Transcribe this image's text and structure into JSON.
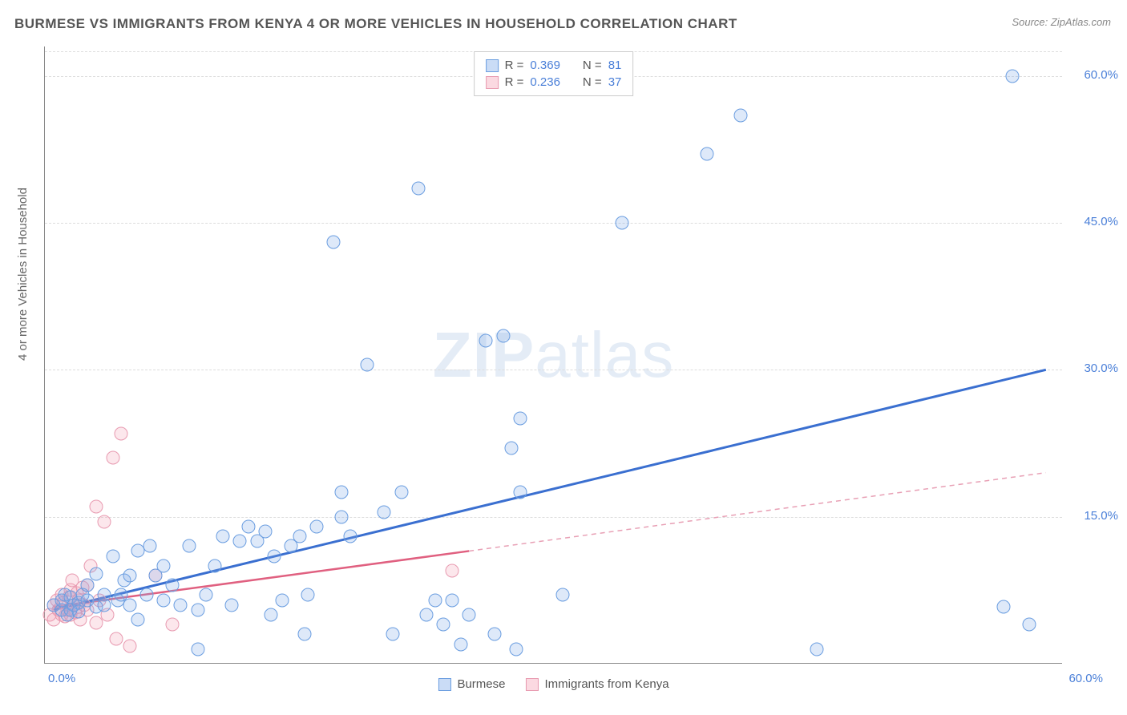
{
  "title": "BURMESE VS IMMIGRANTS FROM KENYA 4 OR MORE VEHICLES IN HOUSEHOLD CORRELATION CHART",
  "source": "Source: ZipAtlas.com",
  "ylabel": "4 or more Vehicles in Household",
  "watermark_bold": "ZIP",
  "watermark_light": "atlas",
  "xlim": [
    0,
    60
  ],
  "ylim": [
    0,
    63
  ],
  "xtick_labels": [
    "0.0%",
    "60.0%"
  ],
  "ytick_positions": [
    15,
    30,
    45,
    60
  ],
  "ytick_labels": [
    "15.0%",
    "30.0%",
    "45.0%",
    "60.0%"
  ],
  "series": {
    "blue": {
      "name": "Burmese",
      "color_fill": "rgba(122,168,232,0.25)",
      "color_stroke": "#6a9de0",
      "marker_size": 17,
      "R": "0.369",
      "N": "81",
      "trend": {
        "from_pct": [
          0.5,
          5.5
        ],
        "to_pct": [
          59,
          30
        ],
        "color": "#3a6fd0",
        "width": 3,
        "dash": "none"
      },
      "points_pct": [
        [
          0.5,
          6
        ],
        [
          1,
          5.5
        ],
        [
          1,
          6.5
        ],
        [
          1.2,
          7
        ],
        [
          1.3,
          5
        ],
        [
          1.5,
          5.5
        ],
        [
          1.5,
          6.8
        ],
        [
          1.7,
          6
        ],
        [
          2,
          6.2
        ],
        [
          2,
          5.3
        ],
        [
          2.2,
          7
        ],
        [
          2.5,
          6.5
        ],
        [
          2.5,
          8
        ],
        [
          3,
          5.8
        ],
        [
          3,
          9.2
        ],
        [
          3.5,
          7
        ],
        [
          3.5,
          6
        ],
        [
          4,
          11
        ],
        [
          4.3,
          6.5
        ],
        [
          4.5,
          7
        ],
        [
          4.7,
          8.5
        ],
        [
          5,
          6
        ],
        [
          5,
          9
        ],
        [
          5.5,
          4.5
        ],
        [
          5.5,
          11.5
        ],
        [
          6,
          7
        ],
        [
          6.2,
          12
        ],
        [
          6.5,
          9
        ],
        [
          7,
          6.5
        ],
        [
          7,
          10
        ],
        [
          7.5,
          8
        ],
        [
          8,
          6
        ],
        [
          8.5,
          12
        ],
        [
          9,
          1.5
        ],
        [
          9,
          5.5
        ],
        [
          9.5,
          7
        ],
        [
          10,
          10
        ],
        [
          10.5,
          13
        ],
        [
          11,
          6
        ],
        [
          11.5,
          12.5
        ],
        [
          12,
          14
        ],
        [
          12.5,
          12.5
        ],
        [
          13,
          13.5
        ],
        [
          13.3,
          5
        ],
        [
          13.5,
          11
        ],
        [
          14,
          6.5
        ],
        [
          14.5,
          12
        ],
        [
          15,
          13
        ],
        [
          15.3,
          3
        ],
        [
          15.5,
          7
        ],
        [
          16,
          14
        ],
        [
          17,
          43
        ],
        [
          17.5,
          15
        ],
        [
          17.5,
          17.5
        ],
        [
          18,
          13
        ],
        [
          19,
          30.5
        ],
        [
          20,
          15.5
        ],
        [
          20.5,
          3
        ],
        [
          21,
          17.5
        ],
        [
          22,
          48.5
        ],
        [
          22.5,
          5
        ],
        [
          23,
          6.5
        ],
        [
          23.5,
          4
        ],
        [
          24,
          6.5
        ],
        [
          24.5,
          2
        ],
        [
          25,
          5
        ],
        [
          26,
          33
        ],
        [
          26.5,
          3
        ],
        [
          27,
          33.5
        ],
        [
          27.5,
          22
        ],
        [
          27.8,
          1.5
        ],
        [
          28,
          17.5
        ],
        [
          28,
          25
        ],
        [
          30.5,
          7
        ],
        [
          34,
          45
        ],
        [
          39,
          52
        ],
        [
          41,
          56
        ],
        [
          45.5,
          1.5
        ],
        [
          56.5,
          5.8
        ],
        [
          57,
          60
        ],
        [
          58,
          4
        ]
      ]
    },
    "pink": {
      "name": "Immigrants from Kenya",
      "color_fill": "rgba(245,160,180,0.25)",
      "color_stroke": "#e89ab0",
      "marker_size": 17,
      "R": "0.236",
      "N": "37",
      "trend": {
        "from_pct": [
          0.5,
          5.8
        ],
        "to_pct": [
          25,
          11.5
        ],
        "color": "#e06080",
        "width": 2.5,
        "dash": "none"
      },
      "trend_ext": {
        "from_pct": [
          25,
          11.5
        ],
        "to_pct": [
          59,
          19.5
        ],
        "color": "#e8a0b5",
        "width": 1.5,
        "dash": "6,5"
      },
      "points_pct": [
        [
          0.3,
          5
        ],
        [
          0.5,
          6
        ],
        [
          0.5,
          4.5
        ],
        [
          0.7,
          6.5
        ],
        [
          0.8,
          5.5
        ],
        [
          1,
          5
        ],
        [
          1,
          7
        ],
        [
          1.1,
          6.2
        ],
        [
          1.2,
          4.8
        ],
        [
          1.3,
          5.5
        ],
        [
          1.4,
          6.8
        ],
        [
          1.5,
          5
        ],
        [
          1.5,
          7.5
        ],
        [
          1.6,
          8.5
        ],
        [
          1.7,
          6
        ],
        [
          1.8,
          5.2
        ],
        [
          1.9,
          7.2
        ],
        [
          2,
          5.8
        ],
        [
          2,
          6.5
        ],
        [
          2.1,
          4.5
        ],
        [
          2.2,
          7.8
        ],
        [
          2.3,
          6
        ],
        [
          2.5,
          5.5
        ],
        [
          2.5,
          8
        ],
        [
          2.7,
          10
        ],
        [
          3,
          16
        ],
        [
          3,
          4.2
        ],
        [
          3.2,
          6.5
        ],
        [
          3.5,
          14.5
        ],
        [
          3.7,
          5
        ],
        [
          4,
          21
        ],
        [
          4.2,
          2.5
        ],
        [
          4.5,
          23.5
        ],
        [
          5,
          1.8
        ],
        [
          6.5,
          9
        ],
        [
          7.5,
          4
        ],
        [
          24,
          9.5
        ]
      ]
    }
  },
  "legend_top": [
    {
      "swatch": "blue",
      "r_label": "R =",
      "r_val": "0.369",
      "n_label": "N =",
      "n_val": "81"
    },
    {
      "swatch": "pink",
      "r_label": "R =",
      "r_val": "0.236",
      "n_label": "N =",
      "n_val": "37"
    }
  ],
  "legend_bottom": [
    {
      "swatch": "blue",
      "label": "Burmese"
    },
    {
      "swatch": "pink",
      "label": "Immigrants from Kenya"
    }
  ]
}
